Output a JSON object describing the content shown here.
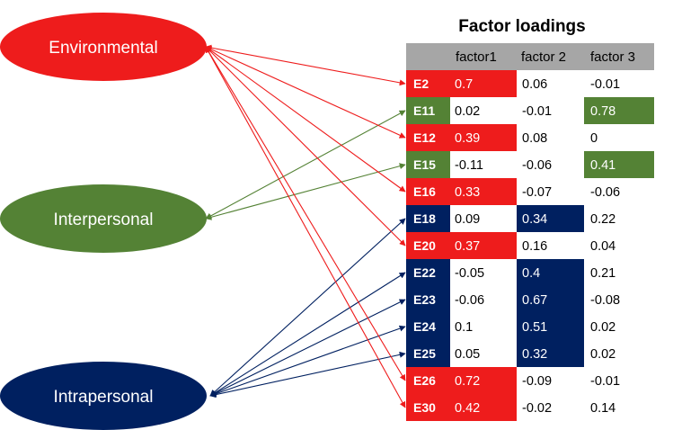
{
  "title": "Factor loadings",
  "columns": [
    "",
    "factor1",
    "factor 2",
    "factor 3"
  ],
  "colors": {
    "environmental": "#ee1c1c",
    "interpersonal": "#548235",
    "intrapersonal": "#002060",
    "header_bg": "#a6a6a6"
  },
  "factors": [
    {
      "id": "environmental",
      "label": "Environmental"
    },
    {
      "id": "interpersonal",
      "label": "Interpersonal"
    },
    {
      "id": "intrapersonal",
      "label": "Intrapersonal"
    }
  ],
  "rows": [
    {
      "item": "E2",
      "group": "environmental",
      "values": [
        "0.7",
        "0.06",
        "-0.01"
      ]
    },
    {
      "item": "E11",
      "group": "interpersonal",
      "values": [
        "0.02",
        "-0.01",
        "0.78"
      ]
    },
    {
      "item": "E12",
      "group": "environmental",
      "values": [
        "0.39",
        "0.08",
        "0"
      ]
    },
    {
      "item": "E15",
      "group": "interpersonal",
      "values": [
        "-0.11",
        "-0.06",
        "0.41"
      ]
    },
    {
      "item": "E16",
      "group": "environmental",
      "values": [
        "0.33",
        "-0.07",
        "-0.06"
      ]
    },
    {
      "item": "E18",
      "group": "intrapersonal",
      "values": [
        "0.09",
        "0.34",
        "0.22"
      ]
    },
    {
      "item": "E20",
      "group": "environmental",
      "values": [
        "0.37",
        "0.16",
        "0.04"
      ]
    },
    {
      "item": "E22",
      "group": "intrapersonal",
      "values": [
        "-0.05",
        "0.4",
        "0.21"
      ]
    },
    {
      "item": "E23",
      "group": "intrapersonal",
      "values": [
        "-0.06",
        "0.67",
        "-0.08"
      ]
    },
    {
      "item": "E24",
      "group": "intrapersonal",
      "values": [
        "0.1",
        "0.51",
        "0.02"
      ]
    },
    {
      "item": "E25",
      "group": "intrapersonal",
      "values": [
        "0.05",
        "0.32",
        "0.02"
      ]
    },
    {
      "item": "E26",
      "group": "environmental",
      "values": [
        "0.72",
        "-0.09",
        "-0.01"
      ]
    },
    {
      "item": "E30",
      "group": "environmental",
      "values": [
        "0.42",
        "-0.02",
        "0.14"
      ]
    }
  ]
}
